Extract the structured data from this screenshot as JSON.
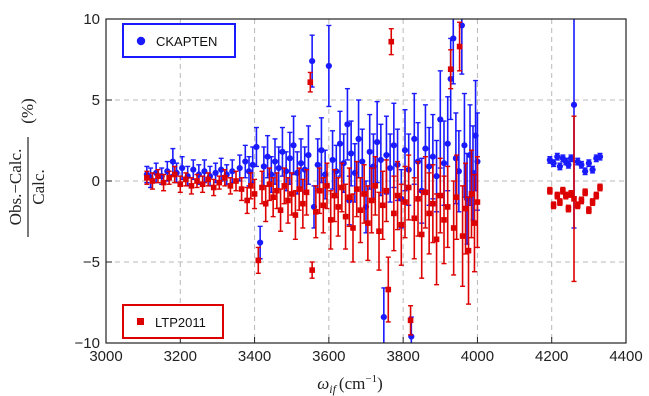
{
  "chart_data": {
    "type": "scatter",
    "title": "",
    "xlabel": {
      "prefix": "ω",
      "subscript": "if",
      "unit_prefix": "(cm",
      "unit_sup": "−1",
      "unit_suffix": ")"
    },
    "ylabel": {
      "numerator": "Obs.−Calc.",
      "denominator": "Calc.",
      "unit": "(%)"
    },
    "xlim": [
      3000,
      4400
    ],
    "ylim": [
      -10,
      10
    ],
    "x_ticks": [
      "3000",
      "3200",
      "3400",
      "3600",
      "3800",
      "4000",
      "4200",
      "4400"
    ],
    "y_ticks": [
      "10",
      "5",
      "0",
      "−5",
      "−10"
    ],
    "grid": true,
    "series": [
      {
        "name": "CKAPTEN",
        "color": "#1a1aff",
        "marker": "circle",
        "legend_position": "top-left",
        "points": [
          [
            3110,
            0.4,
            0.5
          ],
          [
            3120,
            0.2,
            0.6
          ],
          [
            3135,
            0.5,
            0.6
          ],
          [
            3150,
            0.3,
            0.5
          ],
          [
            3165,
            0.6,
            0.6
          ],
          [
            3180,
            1.2,
            0.8
          ],
          [
            3190,
            0.5,
            0.6
          ],
          [
            3205,
            0.8,
            0.7
          ],
          [
            3220,
            0.3,
            0.6
          ],
          [
            3235,
            0.7,
            0.6
          ],
          [
            3250,
            0.4,
            0.6
          ],
          [
            3265,
            0.6,
            0.7
          ],
          [
            3280,
            0.3,
            0.6
          ],
          [
            3295,
            0.5,
            0.6
          ],
          [
            3310,
            0.7,
            0.7
          ],
          [
            3325,
            0.4,
            0.6
          ],
          [
            3340,
            0.6,
            0.7
          ],
          [
            3360,
            0.8,
            0.8
          ],
          [
            3375,
            1.2,
            1.0
          ],
          [
            3385,
            0.6,
            0.9
          ],
          [
            3395,
            1.0,
            1.1
          ],
          [
            3405,
            2.1,
            1.2
          ],
          [
            3415,
            -3.8,
            1.0
          ],
          [
            3425,
            0.9,
            1.2
          ],
          [
            3435,
            1.5,
            1.3
          ],
          [
            3445,
            0.4,
            1.1
          ],
          [
            3455,
            1.2,
            1.4
          ],
          [
            3465,
            0.8,
            1.3
          ],
          [
            3475,
            1.8,
            1.5
          ],
          [
            3485,
            0.6,
            1.2
          ],
          [
            3495,
            1.4,
            1.6
          ],
          [
            3505,
            2.2,
            1.8
          ],
          [
            3515,
            0.5,
            1.3
          ],
          [
            3525,
            1.1,
            1.5
          ],
          [
            3535,
            0.7,
            1.4
          ],
          [
            3545,
            1.6,
            1.8
          ],
          [
            3555,
            7.4,
            1.6
          ],
          [
            3560,
            -1.6,
            1.3
          ],
          [
            3570,
            1.0,
            1.6
          ],
          [
            3580,
            1.9,
            2.0
          ],
          [
            3590,
            0.4,
            1.5
          ],
          [
            3600,
            7.1,
            2.5
          ],
          [
            3610,
            1.3,
            1.8
          ],
          [
            3620,
            0.6,
            1.6
          ],
          [
            3630,
            2.3,
            2.0
          ],
          [
            3640,
            1.1,
            1.8
          ],
          [
            3650,
            3.5,
            2.2
          ],
          [
            3655,
            -1.2,
            1.5
          ],
          [
            3660,
            1.7,
            2.0
          ],
          [
            3670,
            0.5,
            1.8
          ],
          [
            3680,
            2.6,
            2.4
          ],
          [
            3690,
            1.2,
            2.0
          ],
          [
            3700,
            -1.6,
            1.6
          ],
          [
            3710,
            1.8,
            2.3
          ],
          [
            3720,
            0.9,
            2.0
          ],
          [
            3730,
            2.4,
            2.5
          ],
          [
            3740,
            1.3,
            2.2
          ],
          [
            3748,
            -8.4,
            1.8
          ],
          [
            3755,
            1.6,
            2.4
          ],
          [
            3765,
            0.8,
            2.1
          ],
          [
            3775,
            2.2,
            2.6
          ],
          [
            3785,
            1.0,
            2.2
          ],
          [
            3795,
            -1.1,
            1.8
          ],
          [
            3805,
            1.9,
            2.5
          ],
          [
            3815,
            0.7,
            2.2
          ],
          [
            3822,
            -9.6,
            1.2
          ],
          [
            3830,
            2.6,
            2.8
          ],
          [
            3840,
            1.2,
            2.4
          ],
          [
            3850,
            -0.6,
            2.0
          ],
          [
            3860,
            2.0,
            2.7
          ],
          [
            3870,
            0.9,
            2.4
          ],
          [
            3880,
            1.5,
            2.6
          ],
          [
            3890,
            0.3,
            2.2
          ],
          [
            3900,
            3.8,
            3.0
          ],
          [
            3910,
            1.1,
            2.6
          ],
          [
            3920,
            2.3,
            2.9
          ],
          [
            3928,
            6.3,
            2.5
          ],
          [
            3935,
            8.8,
            2.8
          ],
          [
            3942,
            1.4,
            2.8
          ],
          [
            3950,
            0.6,
            2.5
          ],
          [
            3958,
            9.6,
            3.0
          ],
          [
            3965,
            2.2,
            3.2
          ],
          [
            3972,
            -1.1,
            2.8
          ],
          [
            3980,
            1.6,
            3.1
          ],
          [
            3988,
            0.5,
            2.9
          ],
          [
            3995,
            2.8,
            3.4
          ],
          [
            4000,
            1.2,
            3.0
          ],
          [
            4195,
            1.3,
            0.2
          ],
          [
            4205,
            1.1,
            0.2
          ],
          [
            4215,
            1.5,
            0.2
          ],
          [
            4222,
            0.9,
            0.2
          ],
          [
            4230,
            1.4,
            0.2
          ],
          [
            4238,
            1.2,
            0.2
          ],
          [
            4245,
            1.0,
            0.2
          ],
          [
            4252,
            1.4,
            0.2
          ],
          [
            4260,
            4.7,
            7.6
          ],
          [
            4270,
            1.2,
            0.2
          ],
          [
            4280,
            1.0,
            0.2
          ],
          [
            4290,
            0.6,
            0.2
          ],
          [
            4300,
            1.1,
            0.2
          ],
          [
            4310,
            0.7,
            0.2
          ],
          [
            4320,
            1.4,
            0.2
          ],
          [
            4330,
            1.5,
            0.2
          ]
        ]
      },
      {
        "name": "LTP2011",
        "color": "#dd0000",
        "marker": "square",
        "legend_position": "bottom-left",
        "points": [
          [
            3110,
            0.2,
            0.4
          ],
          [
            3125,
            0.0,
            0.5
          ],
          [
            3140,
            0.3,
            0.4
          ],
          [
            3155,
            -0.1,
            0.5
          ],
          [
            3170,
            0.2,
            0.4
          ],
          [
            3185,
            0.4,
            0.5
          ],
          [
            3200,
            -0.2,
            0.5
          ],
          [
            3215,
            0.1,
            0.4
          ],
          [
            3230,
            -0.3,
            0.5
          ],
          [
            3245,
            0.0,
            0.4
          ],
          [
            3260,
            -0.2,
            0.5
          ],
          [
            3275,
            0.1,
            0.4
          ],
          [
            3290,
            -0.4,
            0.5
          ],
          [
            3305,
            -0.1,
            0.4
          ],
          [
            3320,
            0.2,
            0.5
          ],
          [
            3335,
            -0.3,
            0.5
          ],
          [
            3350,
            0.0,
            0.6
          ],
          [
            3365,
            -0.5,
            0.7
          ],
          [
            3380,
            -1.2,
            0.8
          ],
          [
            3390,
            -0.3,
            0.8
          ],
          [
            3400,
            -0.8,
            0.9
          ],
          [
            3410,
            -4.9,
            0.8
          ],
          [
            3420,
            -0.4,
            1.0
          ],
          [
            3430,
            -1.4,
            1.1
          ],
          [
            3440,
            -0.2,
            1.0
          ],
          [
            3450,
            -1.0,
            1.2
          ],
          [
            3460,
            -0.6,
            1.1
          ],
          [
            3470,
            -1.8,
            1.3
          ],
          [
            3480,
            -0.3,
            1.1
          ],
          [
            3490,
            -1.2,
            1.4
          ],
          [
            3500,
            -0.8,
            1.3
          ],
          [
            3510,
            -2.1,
            1.5
          ],
          [
            3520,
            -0.5,
            1.3
          ],
          [
            3530,
            -1.4,
            1.5
          ],
          [
            3540,
            -0.7,
            1.4
          ],
          [
            3550,
            6.1,
            0.6
          ],
          [
            3555,
            -5.5,
            0.5
          ],
          [
            3565,
            -1.9,
            1.6
          ],
          [
            3575,
            -0.6,
            1.4
          ],
          [
            3585,
            -1.5,
            1.7
          ],
          [
            3595,
            -0.3,
            1.4
          ],
          [
            3605,
            -2.4,
            1.8
          ],
          [
            3615,
            -0.9,
            1.6
          ],
          [
            3625,
            -1.6,
            1.8
          ],
          [
            3635,
            -0.4,
            1.5
          ],
          [
            3645,
            -2.2,
            2.0
          ],
          [
            3655,
            -1.0,
            1.8
          ],
          [
            3665,
            -2.9,
            2.1
          ],
          [
            3675,
            -0.5,
            1.7
          ],
          [
            3685,
            -1.8,
            2.0
          ],
          [
            3695,
            -0.8,
            1.8
          ],
          [
            3705,
            -2.6,
            2.3
          ],
          [
            3715,
            -1.2,
            2.0
          ],
          [
            3725,
            -0.3,
            1.8
          ],
          [
            3735,
            -3.1,
            2.4
          ],
          [
            3745,
            -1.5,
            2.1
          ],
          [
            3755,
            -0.6,
            1.9
          ],
          [
            3760,
            -6.7,
            2.0
          ],
          [
            3768,
            8.6,
            0.8
          ],
          [
            3775,
            -2.0,
            2.3
          ],
          [
            3785,
            -0.9,
            2.1
          ],
          [
            3795,
            -2.7,
            2.5
          ],
          [
            3805,
            -1.3,
            2.2
          ],
          [
            3815,
            -0.4,
            2.0
          ],
          [
            3820,
            -8.6,
            0.9
          ],
          [
            3830,
            -2.3,
            2.5
          ],
          [
            3840,
            -1.1,
            2.3
          ],
          [
            3850,
            -3.3,
            2.7
          ],
          [
            3860,
            -0.7,
            2.2
          ],
          [
            3870,
            -2.0,
            2.5
          ],
          [
            3880,
            -1.4,
            2.4
          ],
          [
            3890,
            -3.6,
            2.8
          ],
          [
            3900,
            -0.9,
            2.3
          ],
          [
            3910,
            -2.4,
            2.7
          ],
          [
            3920,
            -1.6,
            2.5
          ],
          [
            3928,
            6.9,
            1.2
          ],
          [
            3936,
            -2.9,
            2.9
          ],
          [
            3944,
            -1.0,
            2.6
          ],
          [
            3952,
            8.3,
            1.5
          ],
          [
            3960,
            -3.4,
            3.1
          ],
          [
            3968,
            -1.7,
            2.8
          ],
          [
            3976,
            -4.3,
            3.3
          ],
          [
            3984,
            -0.8,
            2.7
          ],
          [
            3992,
            -2.6,
            3.0
          ],
          [
            4000,
            -1.3,
            2.8
          ],
          [
            4195,
            -0.6,
            0.2
          ],
          [
            4205,
            -1.5,
            0.2
          ],
          [
            4215,
            -0.9,
            0.2
          ],
          [
            4222,
            -1.3,
            0.2
          ],
          [
            4230,
            -0.6,
            0.2
          ],
          [
            4238,
            -0.9,
            0.2
          ],
          [
            4245,
            -1.7,
            0.2
          ],
          [
            4252,
            -0.8,
            0.2
          ],
          [
            4260,
            -1.1,
            5.1
          ],
          [
            4270,
            -1.5,
            0.2
          ],
          [
            4280,
            -1.2,
            0.2
          ],
          [
            4290,
            -0.7,
            0.2
          ],
          [
            4300,
            -1.8,
            0.2
          ],
          [
            4310,
            -1.3,
            0.2
          ],
          [
            4320,
            -0.9,
            0.2
          ],
          [
            4330,
            -0.4,
            0.2
          ]
        ]
      }
    ]
  }
}
